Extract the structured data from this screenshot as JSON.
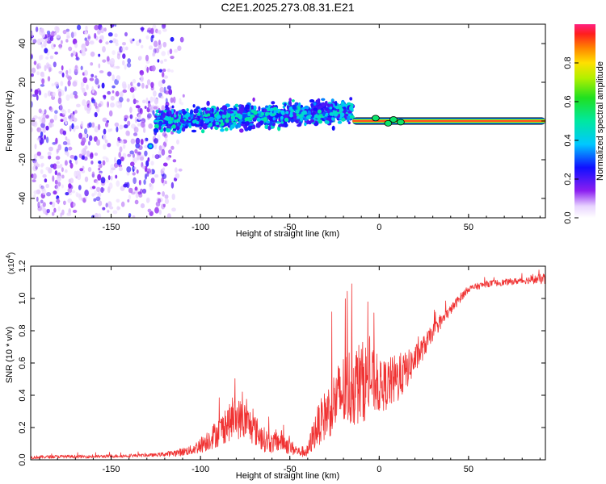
{
  "title": "C2E1.2025.273.08.31.E21",
  "colors": {
    "line": "#f03232",
    "axis": "#000000",
    "signal_ring": "#000000",
    "scatter_light": "#c9a3f5",
    "scatter_dark": "#7a1ee6"
  },
  "chart_data": [
    {
      "type": "heatmap",
      "name": "spectrogram",
      "xlabel": "Height of straight line (km)",
      "ylabel": "Frequency (Hz)",
      "xlim": [
        -195,
        93
      ],
      "ylim": [
        -50,
        50
      ],
      "xticks": [
        -150,
        -100,
        -50,
        0,
        50
      ],
      "xtick_labels": [
        "-150",
        "-100",
        "-50",
        "0",
        "50"
      ],
      "yticks": [
        -40,
        -20,
        0,
        20,
        40
      ],
      "ytick_labels": [
        "-40",
        "-20",
        "0",
        "20",
        "40"
      ],
      "colorbar": {
        "label": "Normalized spectral amplitude",
        "range": [
          0,
          1
        ],
        "ticks": [
          0.0,
          0.2,
          0.4,
          0.6,
          0.8
        ],
        "tick_labels": [
          "0.0",
          "0.2",
          "0.4",
          "0.6",
          "0.8"
        ]
      },
      "regions": {
        "noise": {
          "x": [
            -195,
            -108
          ],
          "freq": [
            -50,
            50
          ],
          "amplitude": [
            0.05,
            0.25
          ]
        },
        "band": {
          "x": [
            -125,
            -15
          ],
          "freq_center": [
            0,
            5
          ],
          "freq_halfwidth": 7,
          "amplitude": [
            0.2,
            0.5
          ]
        },
        "line": {
          "x": [
            -15,
            93
          ],
          "freq": 0,
          "amplitude": 1.0
        }
      }
    },
    {
      "type": "line",
      "name": "snr",
      "xlabel": "Height of straight line (km)",
      "ylabel": "SNR (10 * v/v)",
      "scale_label": "(x10",
      "scale_exponent": "4",
      "scale_close": ")",
      "xlim": [
        -195,
        93
      ],
      "ylim": [
        0,
        1.2
      ],
      "xticks": [
        -150,
        -100,
        -50,
        0,
        50
      ],
      "xtick_labels": [
        "-150",
        "-100",
        "-50",
        "0",
        "50"
      ],
      "yticks": [
        0.0,
        0.2,
        0.4,
        0.6,
        0.8,
        1.0,
        1.2
      ],
      "ytick_labels": [
        "0.0",
        "0.2",
        "0.4",
        "0.6",
        "0.8",
        "1.0",
        "1.2"
      ],
      "series": [
        {
          "name": "SNR",
          "x": [
            -195,
            -180,
            -160,
            -140,
            -125,
            -115,
            -105,
            -100,
            -95,
            -90,
            -85,
            -80,
            -75,
            -70,
            -65,
            -60,
            -55,
            -50,
            -45,
            -40,
            -38,
            -35,
            -30,
            -25,
            -20,
            -15,
            -10,
            -5,
            0,
            5,
            10,
            15,
            20,
            25,
            30,
            35,
            40,
            45,
            50,
            60,
            70,
            80,
            90,
            93
          ],
          "y": [
            0.015,
            0.02,
            0.02,
            0.025,
            0.03,
            0.04,
            0.06,
            0.09,
            0.13,
            0.17,
            0.22,
            0.26,
            0.24,
            0.19,
            0.13,
            0.1,
            0.12,
            0.08,
            0.05,
            0.05,
            0.12,
            0.2,
            0.28,
            0.36,
            0.42,
            0.46,
            0.48,
            0.5,
            0.45,
            0.47,
            0.5,
            0.55,
            0.62,
            0.7,
            0.79,
            0.86,
            0.93,
            1.0,
            1.06,
            1.09,
            1.1,
            1.11,
            1.12,
            1.12
          ],
          "noise": [
            0.01,
            0.01,
            0.01,
            0.01,
            0.01,
            0.02,
            0.03,
            0.05,
            0.07,
            0.09,
            0.11,
            0.13,
            0.12,
            0.1,
            0.08,
            0.06,
            0.07,
            0.05,
            0.03,
            0.04,
            0.08,
            0.12,
            0.16,
            0.2,
            0.24,
            0.26,
            0.26,
            0.22,
            0.16,
            0.16,
            0.16,
            0.12,
            0.09,
            0.07,
            0.05,
            0.04,
            0.03,
            0.03,
            0.02,
            0.02,
            0.02,
            0.02,
            0.03,
            0.04
          ]
        }
      ]
    }
  ]
}
